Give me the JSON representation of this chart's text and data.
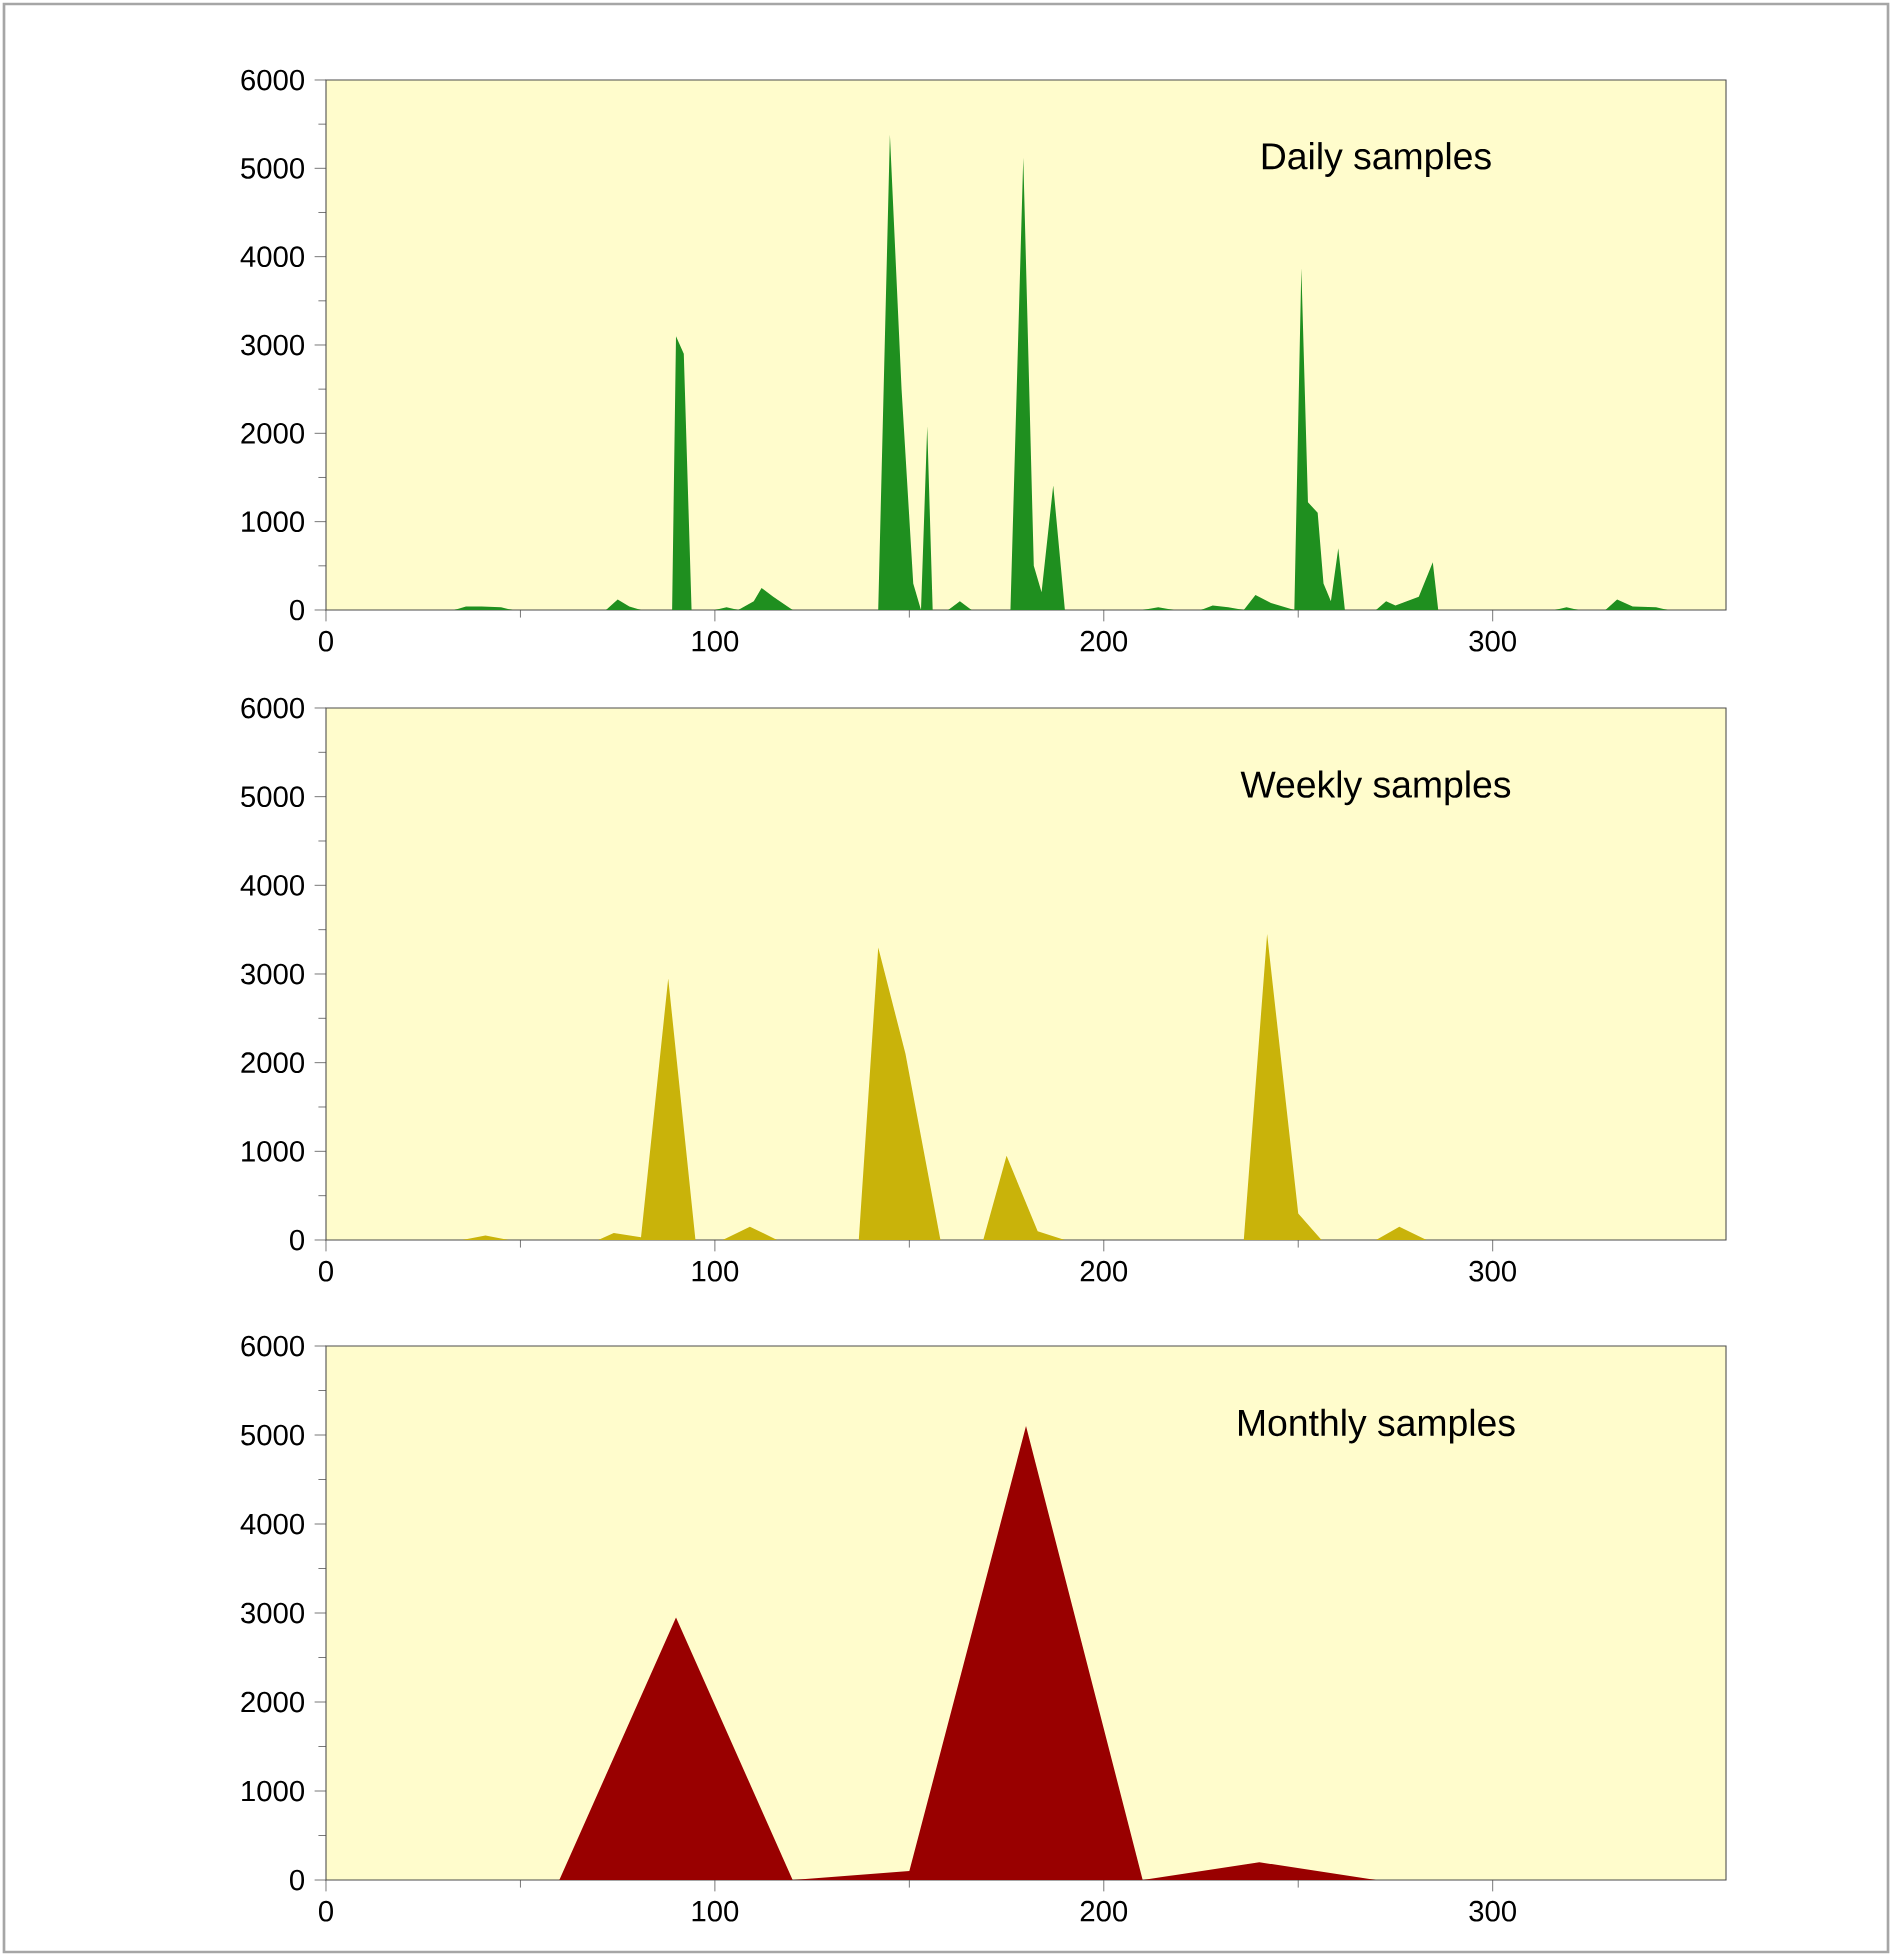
{
  "chart_data": [
    {
      "type": "area",
      "color": "#1f8f1f",
      "xlim": [
        0,
        360
      ],
      "xticks": [
        0,
        100,
        200,
        300
      ],
      "ylim": [
        0,
        6000
      ],
      "yticks": [
        0,
        1000,
        2000,
        3000,
        4000,
        5000,
        6000
      ],
      "annotations": [
        "Daily samples"
      ],
      "x": [
        0,
        33,
        36,
        40,
        45,
        48,
        72,
        75,
        78,
        81,
        85,
        89,
        90,
        92,
        94,
        100,
        103,
        106,
        110,
        112,
        115,
        120,
        142,
        145,
        148,
        151,
        153,
        154.6,
        156,
        160,
        163,
        166,
        176,
        179.3,
        182,
        184,
        187,
        190,
        210,
        214,
        218,
        225,
        228,
        232,
        236,
        239,
        243,
        249,
        250.8,
        252.5,
        255,
        256.5,
        258.4,
        260.3,
        262,
        270,
        272.6,
        275,
        281,
        284.6,
        286,
        300,
        316,
        319,
        322,
        329,
        332,
        336,
        342,
        345,
        360
      ],
      "values": [
        0,
        0,
        40,
        40,
        30,
        0,
        0,
        120,
        40,
        0,
        0,
        0,
        3100,
        2900,
        0,
        0,
        30,
        0,
        100,
        250,
        150,
        0,
        0,
        5380,
        2500,
        300,
        0,
        2080,
        0,
        0,
        100,
        0,
        0,
        5120,
        500,
        200,
        1410,
        0,
        0,
        30,
        0,
        0,
        50,
        30,
        0,
        170,
        80,
        0,
        3870,
        1220,
        1100,
        300,
        100,
        700,
        0,
        0,
        100,
        50,
        150,
        540,
        0,
        0,
        0,
        30,
        0,
        0,
        120,
        40,
        30,
        0,
        0
      ]
    },
    {
      "type": "area",
      "color": "#c9b30a",
      "xlim": [
        0,
        360
      ],
      "xticks": [
        0,
        100,
        200,
        300
      ],
      "ylim": [
        0,
        6000
      ],
      "yticks": [
        0,
        1000,
        2000,
        3000,
        4000,
        5000,
        6000
      ],
      "annotations": [
        "Weekly samples"
      ],
      "x": [
        0,
        35,
        41,
        47,
        70,
        74,
        81,
        88,
        95,
        102,
        109,
        116,
        137,
        142,
        149,
        158,
        169,
        175,
        183,
        190,
        236,
        242,
        250,
        256,
        270,
        276,
        283,
        360
      ],
      "values": [
        0,
        0,
        50,
        0,
        0,
        80,
        30,
        2950,
        0,
        0,
        150,
        0,
        0,
        3300,
        2100,
        0,
        0,
        950,
        100,
        0,
        0,
        3450,
        300,
        0,
        0,
        150,
        0,
        0
      ]
    },
    {
      "type": "area",
      "color": "#990000",
      "xlim": [
        0,
        360
      ],
      "xticks": [
        0,
        100,
        200,
        300
      ],
      "ylim": [
        0,
        6000
      ],
      "yticks": [
        0,
        1000,
        2000,
        3000,
        4000,
        5000,
        6000
      ],
      "annotations": [
        "Monthly samples"
      ],
      "x": [
        0,
        30,
        60,
        90,
        120,
        150,
        180,
        210,
        240,
        270,
        300,
        330,
        360
      ],
      "values": [
        0,
        0,
        0,
        2950,
        0,
        100,
        5100,
        0,
        200,
        0,
        0,
        0,
        0
      ]
    }
  ]
}
